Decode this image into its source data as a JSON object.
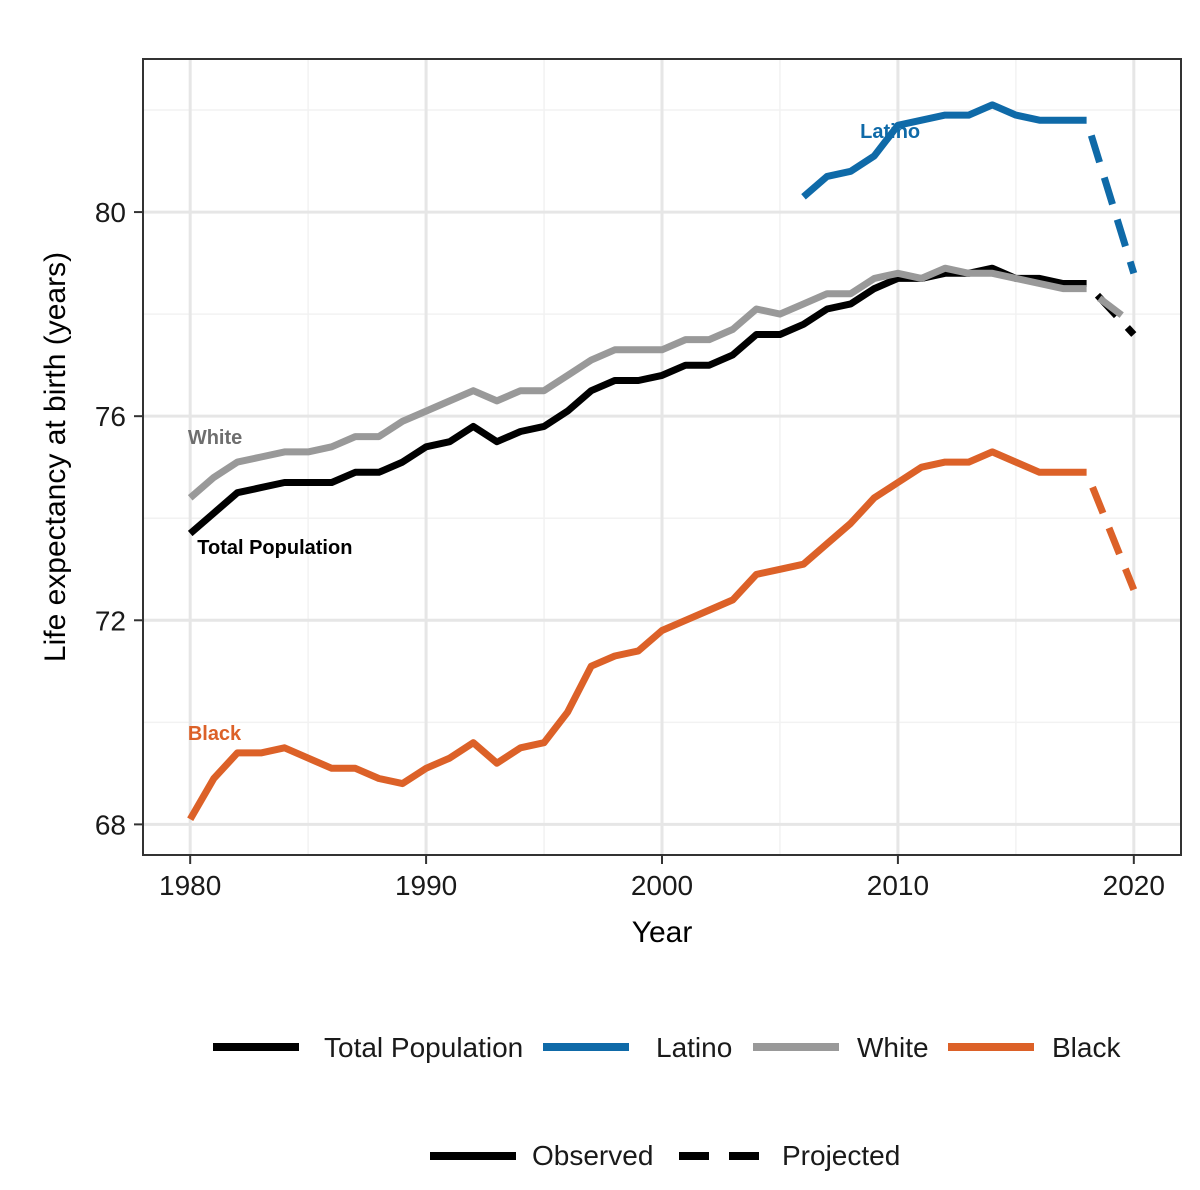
{
  "chart_data": {
    "type": "line",
    "xlabel": "Year",
    "ylabel": "Life expectancy at birth (years)",
    "xlim": [
      1978,
      2022
    ],
    "ylim": [
      67.4,
      83.0
    ],
    "x_ticks": [
      1980,
      1990,
      2000,
      2010,
      2020
    ],
    "y_ticks": [
      68,
      72,
      76,
      80
    ],
    "x_minor": [
      1985,
      1995,
      2005,
      2015
    ],
    "y_minor": [
      70,
      74,
      78,
      82
    ],
    "grid": true,
    "legend_position": "bottom",
    "series": [
      {
        "name": "Total Population",
        "color": "#000000",
        "observed": {
          "x": [
            1980,
            1981,
            1982,
            1983,
            1984,
            1985,
            1986,
            1987,
            1988,
            1989,
            1990,
            1991,
            1992,
            1993,
            1994,
            1995,
            1996,
            1997,
            1998,
            1999,
            2000,
            2001,
            2002,
            2003,
            2004,
            2005,
            2006,
            2007,
            2008,
            2009,
            2010,
            2011,
            2012,
            2013,
            2014,
            2015,
            2016,
            2017,
            2018
          ],
          "y": [
            73.7,
            74.1,
            74.5,
            74.6,
            74.7,
            74.7,
            74.7,
            74.9,
            74.9,
            75.1,
            75.4,
            75.5,
            75.8,
            75.5,
            75.7,
            75.8,
            76.1,
            76.5,
            76.7,
            76.7,
            76.8,
            77.0,
            77.0,
            77.2,
            77.6,
            77.6,
            77.8,
            78.1,
            78.2,
            78.5,
            78.7,
            78.7,
            78.8,
            78.8,
            78.9,
            78.7,
            78.7,
            78.6,
            78.6
          ]
        },
        "projected": {
          "x": [
            2018,
            2020
          ],
          "y": [
            78.6,
            77.6
          ]
        }
      },
      {
        "name": "Latino",
        "color": "#0f6aa8",
        "observed": {
          "x": [
            2006,
            2007,
            2008,
            2009,
            2010,
            2011,
            2012,
            2013,
            2014,
            2015,
            2016,
            2017,
            2018
          ],
          "y": [
            80.3,
            80.7,
            80.8,
            81.1,
            81.7,
            81.8,
            81.9,
            81.9,
            82.1,
            81.9,
            81.8,
            81.8,
            81.8
          ]
        },
        "projected": {
          "x": [
            2018,
            2020
          ],
          "y": [
            81.8,
            78.8
          ]
        }
      },
      {
        "name": "White",
        "color": "#999999",
        "observed": {
          "x": [
            1980,
            1981,
            1982,
            1983,
            1984,
            1985,
            1986,
            1987,
            1988,
            1989,
            1990,
            1991,
            1992,
            1993,
            1994,
            1995,
            1996,
            1997,
            1998,
            1999,
            2000,
            2001,
            2002,
            2003,
            2004,
            2005,
            2006,
            2007,
            2008,
            2009,
            2010,
            2011,
            2012,
            2013,
            2014,
            2015,
            2016,
            2017,
            2018
          ],
          "y": [
            74.4,
            74.8,
            75.1,
            75.2,
            75.3,
            75.3,
            75.4,
            75.6,
            75.6,
            75.9,
            76.1,
            76.3,
            76.5,
            76.3,
            76.5,
            76.5,
            76.8,
            77.1,
            77.3,
            77.3,
            77.3,
            77.5,
            77.5,
            77.7,
            78.1,
            78.0,
            78.2,
            78.4,
            78.4,
            78.7,
            78.8,
            78.7,
            78.9,
            78.8,
            78.8,
            78.7,
            78.6,
            78.5,
            78.5
          ]
        },
        "projected": {
          "x": [
            2018,
            2020
          ],
          "y": [
            78.5,
            77.8
          ]
        }
      },
      {
        "name": "Black",
        "color": "#dc6128",
        "observed": {
          "x": [
            1980,
            1981,
            1982,
            1983,
            1984,
            1985,
            1986,
            1987,
            1988,
            1989,
            1990,
            1991,
            1992,
            1993,
            1994,
            1995,
            1996,
            1997,
            1998,
            1999,
            2000,
            2001,
            2002,
            2003,
            2004,
            2005,
            2006,
            2007,
            2008,
            2009,
            2010,
            2011,
            2012,
            2013,
            2014,
            2015,
            2016,
            2017,
            2018
          ],
          "y": [
            68.1,
            68.9,
            69.4,
            69.4,
            69.5,
            69.3,
            69.1,
            69.1,
            68.9,
            68.8,
            69.1,
            69.3,
            69.6,
            69.2,
            69.5,
            69.6,
            70.2,
            71.1,
            71.3,
            71.4,
            71.8,
            72.0,
            72.2,
            72.4,
            72.9,
            73.0,
            73.1,
            73.5,
            73.9,
            74.4,
            74.7,
            75.0,
            75.1,
            75.1,
            75.3,
            75.1,
            74.9,
            74.9,
            74.9
          ]
        },
        "projected": {
          "x": [
            2018,
            2020
          ],
          "y": [
            74.9,
            72.6
          ]
        }
      }
    ],
    "annotations": [
      {
        "text": "Latino",
        "series": "Latino",
        "x": 2008.4,
        "y": 81.45
      },
      {
        "text": "White",
        "series": "White",
        "x": 1979.9,
        "y": 75.45
      },
      {
        "text": "Total Population",
        "series": "Total Population",
        "x": 1980.3,
        "y": 73.3
      },
      {
        "text": "Black",
        "series": "Black",
        "x": 1979.9,
        "y": 69.65
      }
    ],
    "legend_groups": [
      "Total Population",
      "Latino",
      "White",
      "Black"
    ],
    "linetype_legend": [
      "Observed",
      "Projected"
    ]
  }
}
